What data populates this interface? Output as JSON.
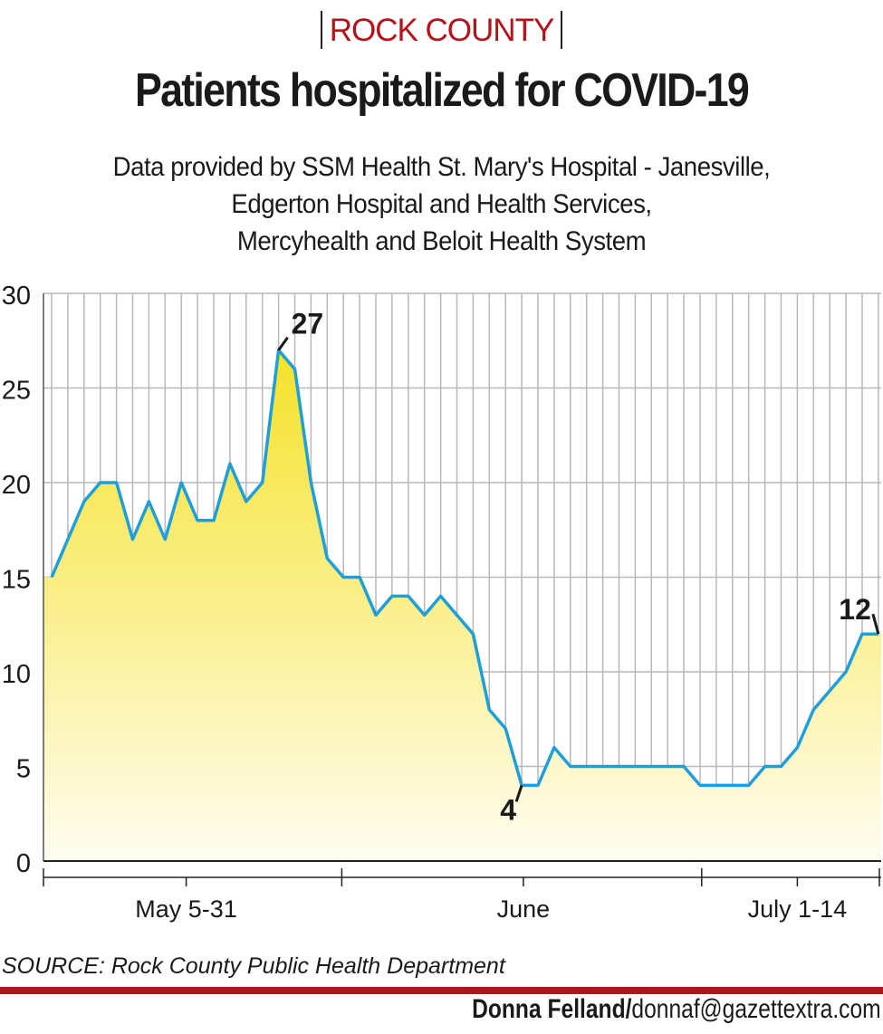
{
  "header": {
    "kicker": "ROCK COUNTY",
    "title": "Patients hospitalized for COVID-19",
    "subtitle_lines": [
      "Data provided by SSM Health St. Mary's Hospital - Janesville,",
      "Edgerton Hospital and Health Services,",
      "Mercyhealth and Beloit Health System"
    ]
  },
  "chart_data": {
    "type": "area",
    "title": "Patients hospitalized for COVID-19",
    "xlabel": "",
    "ylabel": "",
    "ylim": [
      0,
      30
    ],
    "yticks": [
      "0",
      "5",
      "10",
      "15",
      "20",
      "25",
      "30"
    ],
    "x_period_labels": [
      "May 5-31",
      "June",
      "July 1-14"
    ],
    "values": [
      15,
      17,
      19,
      20,
      20,
      17,
      19,
      17,
      20,
      18,
      18,
      21,
      19,
      20,
      27,
      26,
      20,
      16,
      15,
      15,
      13,
      14,
      14,
      13,
      14,
      13,
      12,
      8,
      7,
      4,
      4,
      6,
      5,
      5,
      5,
      5,
      5,
      5,
      5,
      5,
      4,
      4,
      4,
      4,
      5,
      5,
      6,
      8,
      9,
      10,
      12,
      12
    ],
    "annotations": [
      {
        "label": "27",
        "index": 14
      },
      {
        "label": "4",
        "index": 29
      },
      {
        "label": "12",
        "index": 51
      }
    ],
    "colors": {
      "line": "#1e9fd9",
      "fill_top": "#f5e229",
      "fill_bottom": "#fffdf0",
      "grid": "#b7b7b7"
    }
  },
  "footer": {
    "source": "SOURCE: Rock County Public Health Department",
    "author": "Donna Felland/",
    "email": "donnaf@gazettextra.com"
  }
}
